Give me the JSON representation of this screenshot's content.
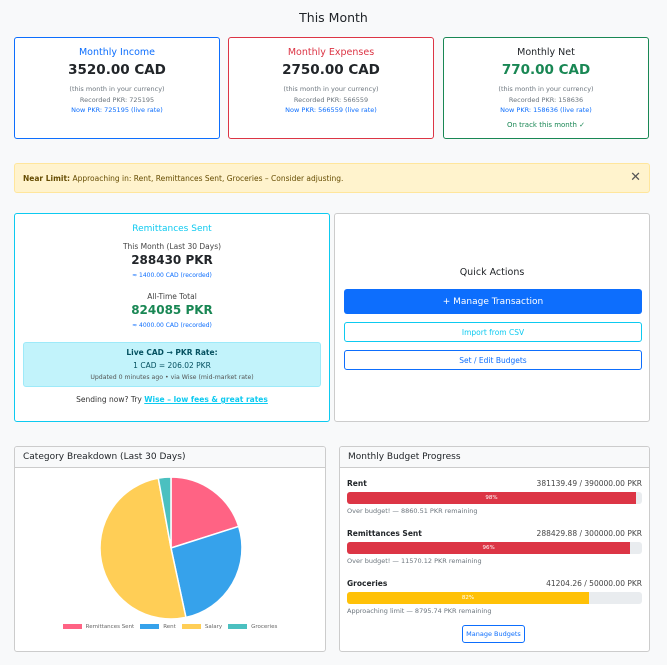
{
  "page_title": "This Month",
  "stats": [
    {
      "title": "Monthly Income",
      "value": "3520.00 CAD",
      "note": "(this month in your currency)",
      "recorded": "Recorded PKR: 725195",
      "now": "Now PKR: 725195 (live rate)",
      "color": "#0d6efd"
    },
    {
      "title": "Monthly Expenses",
      "value": "2750.00 CAD",
      "note": "(this month in your currency)",
      "recorded": "Recorded PKR: 566559",
      "now": "Now PKR: 566559 (live rate)",
      "color": "#dc3545"
    },
    {
      "title": "Monthly Net",
      "value": "770.00 CAD",
      "note": "(this month in your currency)",
      "recorded": "Recorded PKR: 158636",
      "now": "Now PKR: 158636 (live rate)",
      "status": "On track this month ✓",
      "color": "#198754"
    }
  ],
  "alert": {
    "label": "Near Limit:",
    "text": " Approaching in: Rent, Remittances Sent, Groceries – Consider adjusting.",
    "close": "✕"
  },
  "remittances": {
    "title": "Remittances Sent",
    "month_label": "This Month (Last 30 Days)",
    "month_value": "288430 PKR",
    "month_cad": "≈ 1400.00 CAD (recorded)",
    "total_label": "All-Time Total",
    "total_value": "824085 PKR",
    "total_cad": "≈ 4000.00 CAD (recorded)",
    "rate_title": "Live CAD → PKR Rate:",
    "rate_value": "1 CAD = 206.02 PKR",
    "rate_updated": "Updated 0 minutes ago • via Wise (mid-market rate)",
    "send_prefix": "Sending now? Try ",
    "send_link": "Wise – low fees & great rates"
  },
  "quick_actions": {
    "title": "Quick Actions",
    "manage": "+ Manage Transaction",
    "import": "Import from CSV",
    "budgets": "Set / Edit Budgets"
  },
  "category": {
    "title": "Category Breakdown (Last 30 Days)"
  },
  "chart_data": {
    "type": "pie",
    "categories": [
      "Remittances Sent",
      "Rent",
      "Salary",
      "Groceries"
    ],
    "values": [
      288430,
      381139,
      725195,
      41204
    ],
    "colors": [
      "#ff6384",
      "#36a2eb",
      "#ffce56",
      "#4bc0c0"
    ],
    "legend": "bottom"
  },
  "budget": {
    "title": "Monthly Budget Progress",
    "items": [
      {
        "name": "Rent",
        "amount": "381139.49 / 390000.00 PKR",
        "percent": 98,
        "percent_label": "98%",
        "note": "Over budget! — 8860.51 PKR remaining",
        "color": "#dc3545"
      },
      {
        "name": "Remittances Sent",
        "amount": "288429.88 / 300000.00 PKR",
        "percent": 96,
        "percent_label": "96%",
        "note": "Over budget! — 11570.12 PKR remaining",
        "color": "#dc3545"
      },
      {
        "name": "Groceries",
        "amount": "41204.26 / 50000.00 PKR",
        "percent": 82,
        "percent_label": "82%",
        "note": "Approaching limit — 8795.74 PKR remaining",
        "color": "#ffc107"
      }
    ],
    "manage": "Manage Budgets"
  }
}
